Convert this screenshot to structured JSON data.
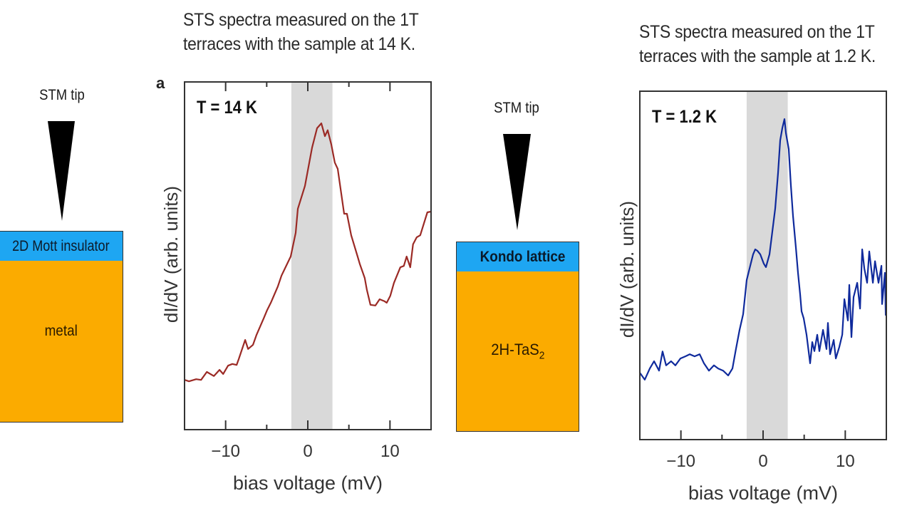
{
  "diagram_left": {
    "tip_label": "STM tip",
    "top_layer": "2D Mott insulator",
    "bottom_layer": "metal",
    "colors": {
      "top_layer": "#1ea6f2",
      "bottom_layer": "#fbab00",
      "tip": "#000000"
    }
  },
  "diagram_middle": {
    "tip_label": "STM tip",
    "top_layer": "Kondo lattice",
    "bottom_layer_main": "2H-TaS",
    "bottom_layer_subscript": "2",
    "colors": {
      "top_layer": "#1ea6f2",
      "bottom_layer": "#fbab00",
      "tip": "#000000"
    }
  },
  "chart_data": [
    {
      "type": "line",
      "panel_label": "a",
      "title_lines": [
        "STS spectra measured on the 1T",
        "terraces with the sample at 14 K."
      ],
      "annotation": "T = 14 K",
      "xlabel": "bias voltage (mV)",
      "ylabel": "dI/dV (arb. units)",
      "xlim": [
        -15,
        15
      ],
      "ylim": [
        0,
        1
      ],
      "xticks": [
        -10,
        -5,
        0,
        5,
        10
      ],
      "xtick_labels": [
        "−10",
        "",
        "0",
        "",
        "10"
      ],
      "shaded_region": [
        -2,
        3
      ],
      "shaded_color": "#d9d9d9",
      "line_color": "#9b2a25",
      "grid": false,
      "series": [
        {
          "name": "T = 14 K",
          "x": [
            -14.98,
            -14.46,
            -13.59,
            -12.99,
            -12.29,
            -11.43,
            -10.74,
            -10.3,
            -9.7,
            -9.18,
            -8.66,
            -8.4,
            -7.62,
            -7.27,
            -6.67,
            -6.23,
            -5.37,
            -4.94,
            -4.5,
            -3.64,
            -3.2,
            -2.08,
            -1.47,
            -1.21,
            -0.35,
            0.52,
            1.13,
            1.65,
            2.08,
            2.42,
            2.86,
            3.29,
            3.64,
            4.42,
            4.76,
            5.28,
            6.06,
            6.32,
            6.93,
            7.19,
            7.62,
            8.23,
            8.74,
            9.35,
            9.61,
            10.04,
            10.48,
            11.26,
            11.69,
            12.03,
            12.47,
            12.81,
            13.25,
            13.68,
            14.55,
            14.98
          ],
          "y": [
            0.143,
            0.139,
            0.145,
            0.143,
            0.166,
            0.154,
            0.172,
            0.16,
            0.184,
            0.189,
            0.186,
            0.203,
            0.258,
            0.232,
            0.244,
            0.273,
            0.32,
            0.344,
            0.365,
            0.412,
            0.443,
            0.498,
            0.566,
            0.635,
            0.701,
            0.811,
            0.867,
            0.881,
            0.844,
            0.861,
            0.82,
            0.768,
            0.75,
            0.621,
            0.621,
            0.559,
            0.498,
            0.477,
            0.436,
            0.402,
            0.359,
            0.357,
            0.375,
            0.369,
            0.365,
            0.385,
            0.422,
            0.467,
            0.471,
            0.498,
            0.467,
            0.533,
            0.553,
            0.559,
            0.625,
            0.627
          ]
        }
      ]
    },
    {
      "type": "line",
      "panel_label": "",
      "title_lines": [
        "STS spectra measured on the 1T",
        "terraces with the sample at 1.2 K."
      ],
      "annotation": "T = 1.2 K",
      "xlabel": "bias voltage (mV)",
      "ylabel": "dI/dV (arb. units)",
      "xlim": [
        -15,
        15
      ],
      "ylim": [
        0,
        1
      ],
      "xticks": [
        -10,
        -5,
        0,
        5,
        10
      ],
      "xtick_labels": [
        "−10",
        "",
        "0",
        "",
        "10"
      ],
      "shaded_region": [
        -2,
        3
      ],
      "shaded_color": "#d9d9d9",
      "line_color": "#0f2a9c",
      "grid": false,
      "series": [
        {
          "name": "T = 1.2 K",
          "x": [
            -15.0,
            -14.4,
            -13.79,
            -13.27,
            -12.66,
            -12.23,
            -11.8,
            -11.19,
            -10.67,
            -10.06,
            -9.45,
            -8.93,
            -8.33,
            -7.72,
            -7.2,
            -6.59,
            -5.98,
            -5.46,
            -4.86,
            -4.25,
            -3.73,
            -3.3,
            -2.86,
            -2.43,
            -1.99,
            -1.65,
            -1.21,
            -0.95,
            -0.69,
            -0.35,
            0.09,
            0.35,
            0.78,
            1.04,
            1.47,
            1.82,
            2.08,
            2.34,
            2.6,
            2.78,
            3.12,
            3.38,
            3.64,
            3.99,
            4.25,
            4.51,
            4.68,
            4.94,
            5.29,
            5.72,
            5.98,
            6.24,
            6.59,
            6.85,
            7.29,
            7.72,
            7.89,
            8.15,
            8.59,
            8.85,
            9.28,
            9.63,
            9.89,
            10.32,
            10.49,
            10.75,
            11.01,
            11.45,
            11.8,
            12.06,
            12.32,
            12.66,
            12.92,
            13.36,
            13.62,
            14.05,
            14.4,
            14.48,
            14.83,
            14.92
          ],
          "y": [
            0.192,
            0.172,
            0.204,
            0.225,
            0.198,
            0.253,
            0.213,
            0.225,
            0.213,
            0.233,
            0.239,
            0.245,
            0.239,
            0.245,
            0.219,
            0.198,
            0.213,
            0.204,
            0.198,
            0.184,
            0.204,
            0.26,
            0.315,
            0.36,
            0.458,
            0.491,
            0.532,
            0.546,
            0.542,
            0.532,
            0.505,
            0.495,
            0.532,
            0.581,
            0.663,
            0.765,
            0.859,
            0.894,
            0.92,
            0.879,
            0.834,
            0.73,
            0.642,
            0.552,
            0.479,
            0.417,
            0.368,
            0.348,
            0.301,
            0.219,
            0.28,
            0.254,
            0.301,
            0.254,
            0.315,
            0.26,
            0.335,
            0.245,
            0.286,
            0.233,
            0.266,
            0.301,
            0.403,
            0.342,
            0.444,
            0.294,
            0.409,
            0.45,
            0.376,
            0.546,
            0.491,
            0.45,
            0.54,
            0.45,
            0.512,
            0.45,
            0.499,
            0.389,
            0.479,
            0.356
          ]
        }
      ]
    }
  ]
}
